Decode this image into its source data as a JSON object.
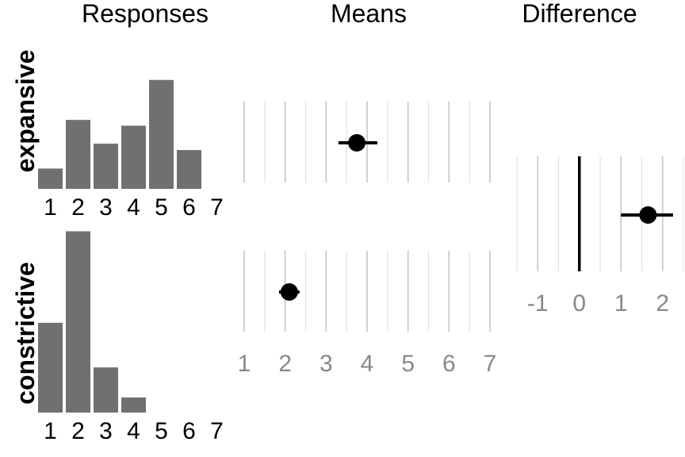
{
  "chart_data": [
    {
      "type": "bar",
      "panel": "Responses",
      "title": "Responses",
      "row_label": "expansive",
      "categories": [
        "1",
        "2",
        "3",
        "4",
        "5",
        "6",
        "7"
      ],
      "values": [
        0.035,
        0.119,
        0.078,
        0.109,
        0.188,
        0.067,
        0.0
      ]
    },
    {
      "type": "bar",
      "panel": "Responses",
      "row_label": "constrictive",
      "categories": [
        "1",
        "2",
        "3",
        "4",
        "5",
        "6",
        "7"
      ],
      "values": [
        0.155,
        0.313,
        0.078,
        0.026,
        0.0,
        0.0,
        0.0
      ]
    },
    {
      "type": "scatter",
      "panel": "Means",
      "title": "Means",
      "xlim": [
        1,
        7
      ],
      "xticks": [
        "1",
        "2",
        "3",
        "4",
        "5",
        "6",
        "7"
      ],
      "grid": true,
      "points": [
        {
          "row": "expansive",
          "mean": 3.75,
          "lo": 3.3,
          "hi": 4.25
        },
        {
          "row": "constrictive",
          "mean": 2.1,
          "lo": 1.85,
          "hi": 2.35
        }
      ]
    },
    {
      "type": "scatter",
      "panel": "Difference",
      "title": "Difference",
      "xlim": [
        -1.5,
        2.5
      ],
      "xticks": [
        "-1",
        "0",
        "1",
        "2"
      ],
      "grid": true,
      "reference_line": 0,
      "points": [
        {
          "mean": 1.65,
          "lo": 1.0,
          "hi": 2.25
        }
      ]
    }
  ]
}
